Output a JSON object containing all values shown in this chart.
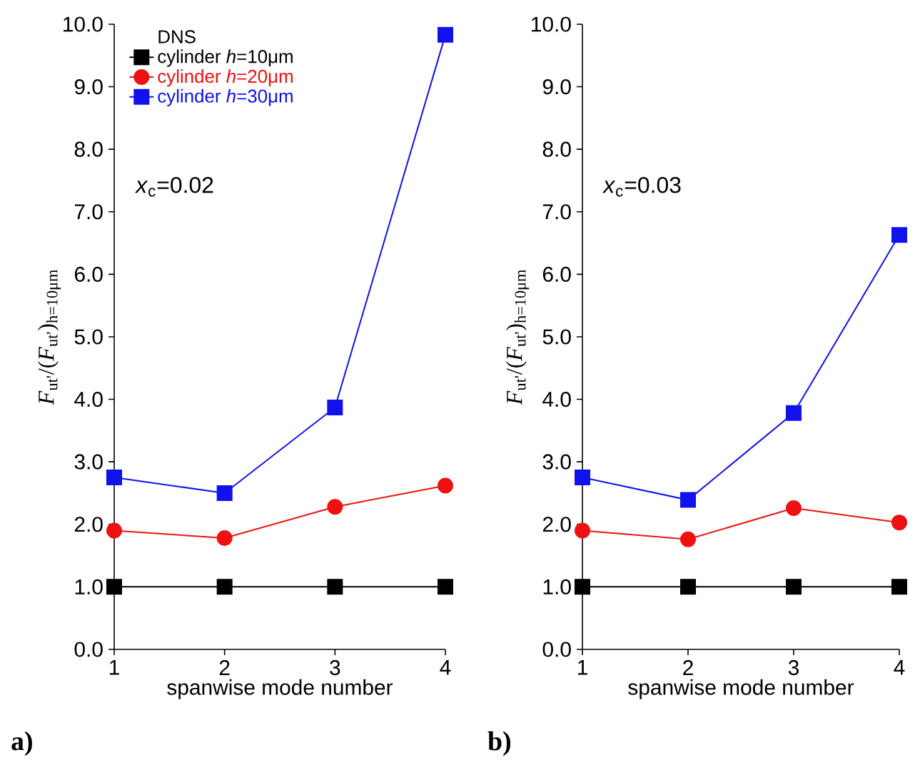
{
  "chart_data": [
    {
      "type": "line",
      "categories": [
        "1",
        "2",
        "3",
        "4"
      ],
      "xlabel": "spanwise mode number",
      "ylabel": "*F*$_{ut'}$/(*F*$_{ut'}$)$_{h=10μm}$",
      "ylim": [
        0,
        10
      ],
      "yticks": [
        {
          "value": 0,
          "label": "0.0"
        },
        {
          "value": 1,
          "label": "1.0"
        },
        {
          "value": 2,
          "label": "2.0"
        },
        {
          "value": 3,
          "label": "3.0"
        },
        {
          "value": 4,
          "label": "4.0"
        },
        {
          "value": 5,
          "label": "5.0"
        },
        {
          "value": 6,
          "label": "6.0"
        },
        {
          "value": 7,
          "label": "7.0"
        },
        {
          "value": 8,
          "label": "8.0"
        },
        {
          "value": 9,
          "label": "9.0"
        },
        {
          "value": 10,
          "label": "10.0"
        }
      ],
      "legend": "top left",
      "legend_title": "DNS",
      "grid": false,
      "annotations": [
        "*x*$_{c}$=0.02",
        "a)"
      ],
      "series": [
        {
          "name": "cylinder *h*=10μm",
          "color": "#000000",
          "marker": "square",
          "values": [
            1.0,
            1.0,
            1.0,
            1.0
          ]
        },
        {
          "name": "cylinder *h*=20μm",
          "color": "#ee1111",
          "marker": "circle",
          "values": [
            1.9,
            1.78,
            2.28,
            2.62
          ]
        },
        {
          "name": "cylinder *h*=30μm",
          "color": "#1111ee",
          "marker": "square",
          "values": [
            2.75,
            2.5,
            3.87,
            9.83
          ]
        }
      ]
    },
    {
      "type": "line",
      "categories": [
        "1",
        "2",
        "3",
        "4"
      ],
      "xlabel": "spanwise mode number",
      "ylabel": "*F*$_{ut'}$/(*F*$_{ut'}$)$_{h=10μm}$",
      "ylim": [
        0,
        10
      ],
      "yticks": [
        {
          "value": 0,
          "label": "0.0"
        },
        {
          "value": 1,
          "label": "1.0"
        },
        {
          "value": 2,
          "label": "2.0"
        },
        {
          "value": 3,
          "label": "3.0"
        },
        {
          "value": 4,
          "label": "4.0"
        },
        {
          "value": 5,
          "label": "5.0"
        },
        {
          "value": 6,
          "label": "6.0"
        },
        {
          "value": 7,
          "label": "7.0"
        },
        {
          "value": 8,
          "label": "8.0"
        },
        {
          "value": 9,
          "label": "9.0"
        },
        {
          "value": 10,
          "label": "10.0"
        }
      ],
      "grid": false,
      "annotations": [
        "*x*$_{c}$=0.03",
        "b)"
      ],
      "series": [
        {
          "color": "#000000",
          "marker": "square",
          "values": [
            1.0,
            1.0,
            1.0,
            1.0
          ]
        },
        {
          "color": "#ee1111",
          "marker": "circle",
          "values": [
            1.9,
            1.76,
            2.26,
            2.03
          ]
        },
        {
          "color": "#1111ee",
          "marker": "square",
          "values": [
            2.75,
            2.39,
            3.78,
            6.63
          ]
        }
      ]
    }
  ]
}
